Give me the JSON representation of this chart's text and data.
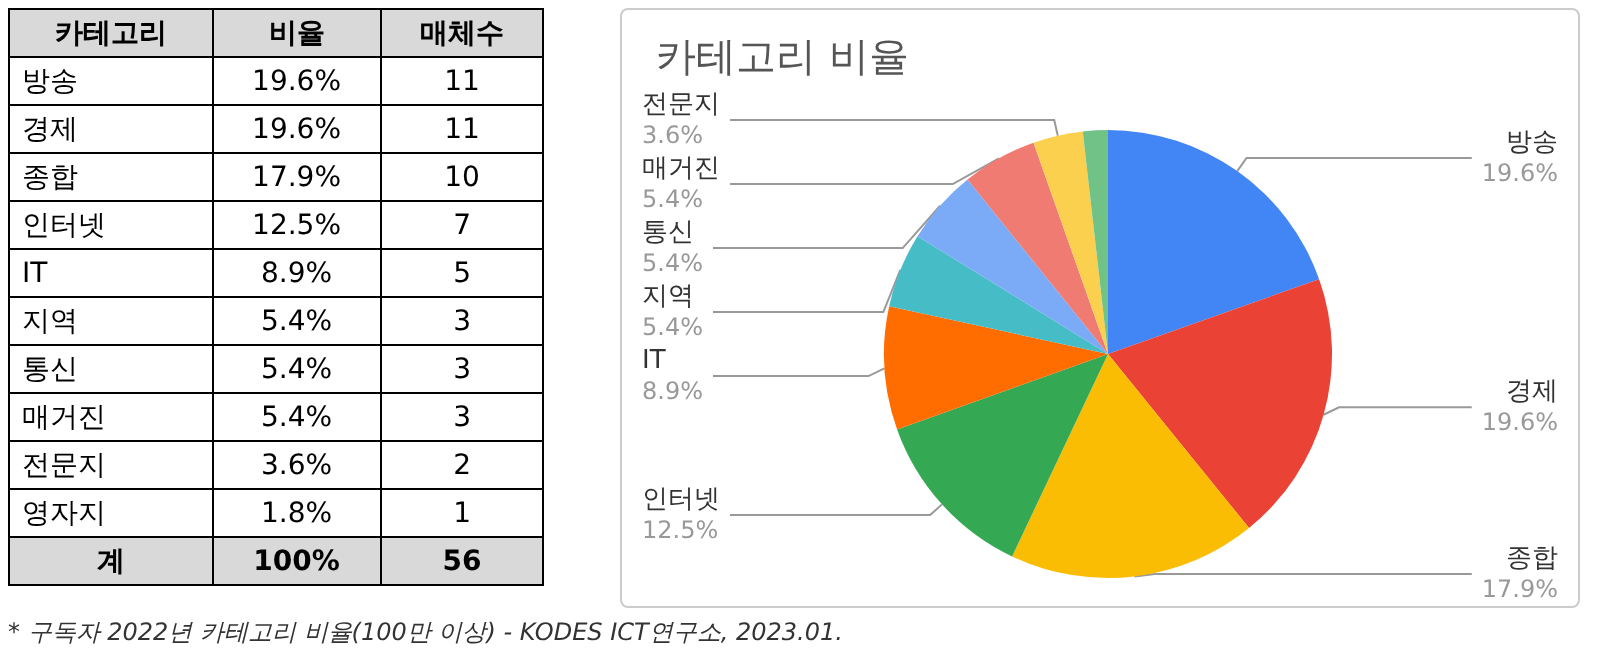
{
  "chart_data": [
    {
      "type": "other",
      "xlabel": "카테고리",
      "categories": [
        "방송",
        "경제",
        "종합",
        "인터넷",
        "IT",
        "지역",
        "통신",
        "매거진",
        "전문지",
        "영자지"
      ],
      "series": [
        {
          "name": "비율",
          "values": [
            19.6,
            19.6,
            17.9,
            12.5,
            8.9,
            5.4,
            5.4,
            5.4,
            3.6,
            1.8
          ],
          "value_labels": [
            "19.6%",
            "19.6%",
            "17.9%",
            "12.5%",
            "8.9%",
            "5.4%",
            "5.4%",
            "5.4%",
            "3.6%",
            "1.8%"
          ]
        },
        {
          "name": "매체수",
          "values": [
            11,
            11,
            10,
            7,
            5,
            3,
            3,
            3,
            2,
            1
          ]
        }
      ],
      "data_labels": true,
      "totals": [
        "100%",
        "56"
      ],
      "annotations": [
        "계",
        "* 구독자 2022년 카테고리 비율(100만 이상) - KODES ICT연구소, 2023.01."
      ]
    },
    {
      "type": "pie",
      "title": "카테고리 비율",
      "categories": [
        "방송",
        "경제",
        "종합",
        "인터넷",
        "IT",
        "지역",
        "통신",
        "매거진",
        "전문지",
        null
      ],
      "values": [
        19.6,
        19.6,
        17.9,
        12.5,
        8.9,
        5.4,
        5.4,
        5.4,
        3.6,
        1.8
      ],
      "value_labels": [
        "19.6%",
        "19.6%",
        "17.9%",
        "12.5%",
        "8.9%",
        "5.4%",
        "5.4%",
        "5.4%",
        "3.6%",
        null
      ],
      "colors": [
        "#4285f4",
        "#ea4335",
        "#fbbc04",
        "#34a853",
        "#ff6d01",
        "#46bdc6",
        "#7baaf7",
        "#f07b72",
        "#fcd04f",
        "#71c287"
      ],
      "legend": false
    }
  ]
}
